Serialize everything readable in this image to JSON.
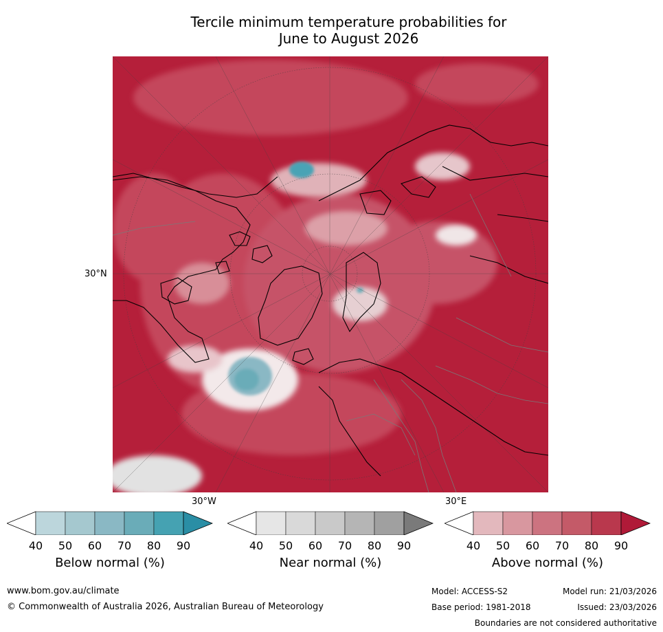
{
  "title": {
    "line1": "Tercile minimum temperature probabilities for",
    "line2": "June to August 2026"
  },
  "map": {
    "projection": "north-polar-stereographic",
    "lat_label": "30°N",
    "lon_label_west": "30°W",
    "lon_label_east": "30°E",
    "colors": {
      "ocean_above": "#b51f3a",
      "near_normal_white": "#f2f2f2",
      "below_teal": "#4aa3b5",
      "coastline": "#000000",
      "borders": "#808080"
    }
  },
  "legends": [
    {
      "name": "below",
      "label": "Below normal (%)",
      "ticks": [
        "40",
        "50",
        "60",
        "70",
        "80",
        "90"
      ],
      "colors": [
        "#ffffff",
        "#bcd6dc",
        "#a5c8cf",
        "#8ab8c4",
        "#6aacb8",
        "#45a2b2",
        "#2a8ea5"
      ]
    },
    {
      "name": "near",
      "label": "Near normal (%)",
      "ticks": [
        "40",
        "50",
        "60",
        "70",
        "80",
        "90"
      ],
      "colors": [
        "#ffffff",
        "#e6e6e6",
        "#d9d9d9",
        "#c9c9c9",
        "#b5b5b5",
        "#a0a0a0",
        "#7a7a7a"
      ]
    },
    {
      "name": "above",
      "label": "Above normal (%)",
      "ticks": [
        "40",
        "50",
        "60",
        "70",
        "80",
        "90"
      ],
      "colors": [
        "#ffffff",
        "#e3b8bd",
        "#d8979f",
        "#cc7380",
        "#c45a68",
        "#b9384d",
        "#b01a38"
      ]
    }
  ],
  "footer": {
    "url": "www.bom.gov.au/climate",
    "copyright": "© Commonwealth of Australia 2026, Australian Bureau of Meteorology",
    "model": "Model: ACCESS-S2",
    "base_period": "Base period: 1981-2018",
    "model_run": "Model run: 21/03/2026",
    "issued": "Issued: 23/03/2026",
    "disclaimer": "Boundaries are not considered authoritative"
  }
}
